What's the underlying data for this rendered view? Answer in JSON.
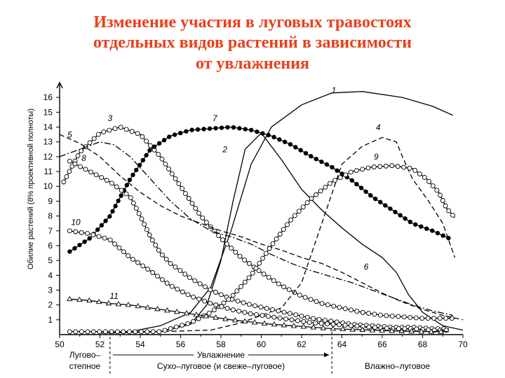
{
  "slide": {
    "title_lines": [
      "Изменение участия в луговых травостоях",
      "отдельных видов растений в зависимости",
      "от увлажнения"
    ]
  },
  "chart_data": {
    "type": "line",
    "ylabel": "Обилие растений (8% проективной полноты)",
    "xlabel": "Увлажнение",
    "xlim": [
      50,
      70
    ],
    "ylim": [
      0,
      17
    ],
    "x_ticks": [
      50,
      52,
      54,
      56,
      58,
      60,
      62,
      64,
      66,
      68,
      70
    ],
    "y_ticks": [
      1,
      2,
      3,
      4,
      5,
      6,
      7,
      8,
      9,
      10,
      11,
      12,
      13,
      14,
      15,
      16
    ],
    "zones": [
      {
        "label": "Лугово–степное",
        "lines": [
          "Лугово–",
          "степное"
        ],
        "from": 50,
        "to": 52.5
      },
      {
        "label": "Сухо–луговое (и свеже–луговое)",
        "from": 52.5,
        "to": 63.5
      },
      {
        "label": "Влажно–луговое",
        "from": 63.5,
        "to": 70
      }
    ],
    "zone_dividers": [
      52.5,
      63.5
    ],
    "series": [
      {
        "name": "1",
        "marker": "none",
        "dash": "solid",
        "label_at": [
          63.6,
          16.3
        ],
        "points": [
          [
            53.5,
            0.2
          ],
          [
            55,
            0.6
          ],
          [
            56.5,
            1.5
          ],
          [
            57.5,
            3.2
          ],
          [
            58.5,
            7
          ],
          [
            59.5,
            11.5
          ],
          [
            60.5,
            14
          ],
          [
            62,
            15.5
          ],
          [
            63.5,
            16.3
          ],
          [
            65,
            16.4
          ],
          [
            67,
            16
          ],
          [
            68.5,
            15.4
          ],
          [
            69.5,
            14.8
          ]
        ]
      },
      {
        "name": "2",
        "marker": "none",
        "dash": "solid",
        "label_at": [
          58.2,
          12.3
        ],
        "points": [
          [
            52,
            0.1
          ],
          [
            55,
            0.2
          ],
          [
            56.5,
            0.7
          ],
          [
            57.3,
            2
          ],
          [
            58,
            5
          ],
          [
            58.6,
            9
          ],
          [
            59.2,
            12.5
          ],
          [
            60,
            13.6
          ],
          [
            61,
            11.8
          ],
          [
            62,
            9.8
          ],
          [
            63,
            8.4
          ],
          [
            64,
            7.2
          ],
          [
            65,
            6.1
          ],
          [
            66,
            5.2
          ],
          [
            66.7,
            4.2
          ],
          [
            67.3,
            2.7
          ],
          [
            68,
            1.5
          ],
          [
            69,
            0.6
          ],
          [
            70,
            0.3
          ]
        ]
      },
      {
        "name": "3",
        "marker": "circle-open",
        "dash": "solid",
        "label_at": [
          52.5,
          14.4
        ],
        "points": [
          [
            50.2,
            10.3
          ],
          [
            51,
            12.3
          ],
          [
            52,
            13.6
          ],
          [
            53,
            14
          ],
          [
            54,
            13.5
          ],
          [
            55,
            12
          ],
          [
            56,
            10
          ],
          [
            57,
            8
          ],
          [
            58,
            6.5
          ],
          [
            59,
            5.2
          ],
          [
            60,
            4.2
          ],
          [
            61,
            3.3
          ],
          [
            62,
            2.6
          ],
          [
            63,
            2.1
          ],
          [
            64,
            1.8
          ],
          [
            65,
            1.5
          ],
          [
            66,
            1.3
          ],
          [
            67,
            1.2
          ],
          [
            68,
            1.1
          ],
          [
            69,
            1.1
          ],
          [
            69.6,
            1.1
          ]
        ]
      },
      {
        "name": "4",
        "marker": "none",
        "dash": "dashed",
        "label_at": [
          65.8,
          13.8
        ],
        "points": [
          [
            52.5,
            0.1
          ],
          [
            57.5,
            0.3
          ],
          [
            59,
            0.8
          ],
          [
            61,
            1.8
          ],
          [
            62,
            3.5
          ],
          [
            63,
            7.5
          ],
          [
            64,
            11.5
          ],
          [
            65,
            12.7
          ],
          [
            66,
            13.3
          ],
          [
            66.7,
            13
          ],
          [
            67,
            12
          ],
          [
            67.5,
            10.5
          ],
          [
            68.3,
            9
          ],
          [
            69,
            7.5
          ],
          [
            69.6,
            5.2
          ]
        ]
      },
      {
        "name": "5",
        "marker": "none",
        "dash": "dash-dot",
        "label_at": [
          50.5,
          13.3
        ],
        "points": [
          [
            50,
            12
          ],
          [
            51,
            12.5
          ],
          [
            52,
            13
          ],
          [
            52.7,
            12.8
          ],
          [
            53.5,
            12
          ],
          [
            54.5,
            10.5
          ],
          [
            55.5,
            9
          ],
          [
            56.5,
            7.8
          ],
          [
            57.5,
            7
          ],
          [
            58.5,
            6.6
          ],
          [
            59.5,
            6.1
          ],
          [
            60.5,
            5.4
          ],
          [
            61.5,
            4.8
          ],
          [
            62.5,
            4.3
          ],
          [
            63.5,
            3.9
          ],
          [
            64.5,
            3.5
          ],
          [
            65.5,
            3
          ],
          [
            66.5,
            2.5
          ],
          [
            67.5,
            2
          ],
          [
            68.5,
            1.6
          ],
          [
            69.5,
            1.3
          ]
        ]
      },
      {
        "name": "6",
        "marker": "none",
        "dash": "dashed",
        "label_at": [
          65.2,
          4.4
        ],
        "points": [
          [
            50,
            13.5
          ],
          [
            51,
            12.9
          ],
          [
            52,
            12
          ],
          [
            53,
            10.7
          ],
          [
            54,
            9.6
          ],
          [
            55,
            8.7
          ],
          [
            56,
            8
          ],
          [
            57,
            7.5
          ],
          [
            58,
            7
          ],
          [
            59,
            6.6
          ],
          [
            60,
            6.1
          ],
          [
            61,
            5.7
          ],
          [
            62,
            5.2
          ],
          [
            63,
            4.8
          ],
          [
            64,
            4.2
          ],
          [
            65,
            3.5
          ],
          [
            66,
            2.8
          ],
          [
            67,
            2.2
          ],
          [
            68,
            1.7
          ],
          [
            69,
            1.3
          ],
          [
            70,
            1
          ]
        ]
      },
      {
        "name": "7",
        "marker": "circle-filled",
        "dash": "solid",
        "label_at": [
          57.7,
          14.4
        ],
        "points": [
          [
            50.5,
            5.6
          ],
          [
            51.5,
            6.5
          ],
          [
            52.5,
            8
          ],
          [
            53.5,
            10.5
          ],
          [
            54.5,
            12.5
          ],
          [
            55.5,
            13.4
          ],
          [
            56.5,
            13.8
          ],
          [
            57.5,
            13.9
          ],
          [
            58.5,
            14
          ],
          [
            59.5,
            13.8
          ],
          [
            60.5,
            13.4
          ],
          [
            61.5,
            12.8
          ],
          [
            62.5,
            12
          ],
          [
            63.5,
            11.3
          ],
          [
            64.5,
            10.4
          ],
          [
            65.5,
            9.3
          ],
          [
            66.5,
            8.4
          ],
          [
            67.5,
            7.5
          ],
          [
            68.5,
            7
          ],
          [
            69.3,
            6.5
          ]
        ]
      },
      {
        "name": "8",
        "marker": "circle-open",
        "dash": "solid",
        "label_at": [
          51.2,
          11.7
        ],
        "points": [
          [
            50.5,
            11.7
          ],
          [
            51.5,
            11
          ],
          [
            52.5,
            10.3
          ],
          [
            53.5,
            9.3
          ],
          [
            54,
            8
          ],
          [
            54.5,
            6.6
          ],
          [
            55,
            5.5
          ],
          [
            55.5,
            4.8
          ],
          [
            56.5,
            3.8
          ],
          [
            57.5,
            3
          ],
          [
            58.5,
            2.4
          ],
          [
            59.5,
            2
          ],
          [
            60.5,
            1.7
          ],
          [
            61.5,
            1.4
          ],
          [
            62.5,
            1.1
          ],
          [
            63.5,
            0.9
          ],
          [
            64.5,
            0.7
          ],
          [
            65.5,
            0.6
          ],
          [
            66.5,
            0.5
          ],
          [
            67.5,
            0.5
          ],
          [
            68.5,
            0.4
          ],
          [
            69.3,
            0.4
          ]
        ]
      },
      {
        "name": "9",
        "marker": "circle-open",
        "dash": "solid",
        "label_at": [
          65.7,
          11.8
        ],
        "points": [
          [
            50.5,
            0.2
          ],
          [
            55,
            0.2
          ],
          [
            56.5,
            0.8
          ],
          [
            57.5,
            1.5
          ],
          [
            58.5,
            2.5
          ],
          [
            59.5,
            4
          ],
          [
            60.5,
            6
          ],
          [
            61.5,
            7.8
          ],
          [
            62.5,
            9.2
          ],
          [
            63.5,
            10.3
          ],
          [
            64.5,
            11
          ],
          [
            65.5,
            11.3
          ],
          [
            66.5,
            11.4
          ],
          [
            67.5,
            11.2
          ],
          [
            68.2,
            10.5
          ],
          [
            68.8,
            9.6
          ],
          [
            69.2,
            8.5
          ],
          [
            69.6,
            7.9
          ]
        ]
      },
      {
        "name": "10",
        "marker": "circle-open",
        "dash": "solid",
        "label_at": [
          50.8,
          7.4
        ],
        "points": [
          [
            50.5,
            7
          ],
          [
            51.5,
            6.8
          ],
          [
            52.5,
            6.4
          ],
          [
            53.5,
            5.2
          ],
          [
            54.5,
            4.3
          ],
          [
            55.5,
            3.3
          ],
          [
            56.5,
            2.6
          ],
          [
            57.5,
            2.1
          ],
          [
            58.5,
            1.7
          ],
          [
            59.5,
            1.4
          ],
          [
            60.5,
            1.2
          ],
          [
            61.5,
            1
          ],
          [
            62.5,
            0.8
          ],
          [
            63.5,
            0.7
          ],
          [
            64.5,
            0.6
          ],
          [
            65.5,
            0.5
          ],
          [
            66.5,
            0.4
          ],
          [
            67.5,
            0.4
          ],
          [
            68.5,
            0.3
          ],
          [
            69.3,
            0.3
          ]
        ]
      },
      {
        "name": "11",
        "marker": "triangle-open",
        "dash": "solid",
        "label_at": [
          52.7,
          2.4
        ],
        "points": [
          [
            50.5,
            2.4
          ],
          [
            51.5,
            2.3
          ],
          [
            52.5,
            2.1
          ],
          [
            53.5,
            2
          ],
          [
            54.5,
            1.8
          ],
          [
            55.5,
            1.6
          ],
          [
            56.5,
            1.4
          ],
          [
            57.5,
            1.2
          ],
          [
            58.5,
            1
          ],
          [
            59.5,
            0.85
          ],
          [
            60.5,
            0.7
          ],
          [
            61.5,
            0.6
          ],
          [
            62.5,
            0.5
          ],
          [
            63.5,
            0.4
          ],
          [
            64.5,
            0.35
          ],
          [
            65.5,
            0.3
          ],
          [
            66.5,
            0.25
          ],
          [
            67.5,
            0.22
          ],
          [
            68.5,
            0.2
          ],
          [
            69.3,
            0.2
          ]
        ]
      }
    ]
  }
}
